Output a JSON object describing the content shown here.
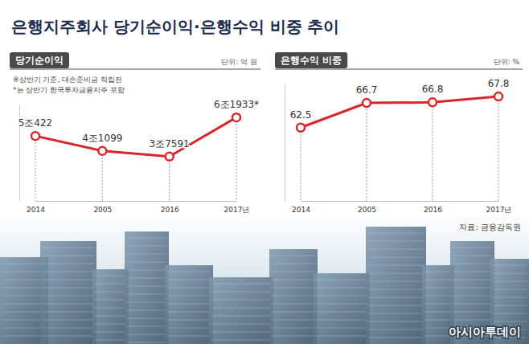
{
  "title": "은행지주회사 당기순이익·은행수익 비중 추이",
  "source": "자료: 금융감독원",
  "credit": "아시아투데이",
  "chart_data": [
    {
      "type": "line",
      "title": "당기순이익",
      "subtitle": "단위: 억 원",
      "annotations": [
        "※상반기 기준, 대손준비금 적립전",
        "*는 상반기 한국투자금융지주 포함"
      ],
      "categories": [
        "2014",
        "2005",
        "2016",
        "2017년"
      ],
      "values": [
        50422,
        41099,
        37591,
        61933
      ],
      "value_labels": [
        "5조422",
        "4조1099",
        "3조7591",
        "6조1933*"
      ],
      "color": "#d8262d",
      "marker": "circle",
      "data_labels": true,
      "ylim": [
        10000,
        70000
      ],
      "yticks": [],
      "tick_labels": "x"
    },
    {
      "type": "line",
      "title": "은행수익 비중",
      "subtitle": "단위: %",
      "categories": [
        "2014",
        "2005",
        "2016",
        "2017년"
      ],
      "values": [
        62.5,
        66.7,
        66.8,
        67.8
      ],
      "color": "#d8262d",
      "marker": "circle",
      "data_labels": true,
      "ylim": [
        50,
        70
      ],
      "yticks": [],
      "tick_labels": "x"
    }
  ]
}
